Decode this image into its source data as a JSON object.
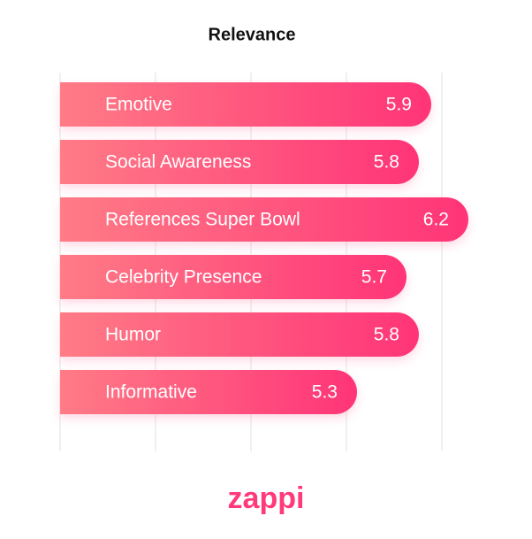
{
  "chart_data": {
    "type": "bar",
    "orientation": "horizontal",
    "title": "Relevance",
    "categories": [
      "Emotive",
      "Social Awareness",
      "References Super Bowl",
      "Celebrity Presence",
      "Humor",
      "Informative"
    ],
    "values": [
      5.9,
      5.8,
      6.2,
      5.7,
      5.8,
      5.3
    ],
    "color": "#ff3a7a",
    "xlim": [
      2.9,
      6.5
    ]
  },
  "brand": "zappi"
}
